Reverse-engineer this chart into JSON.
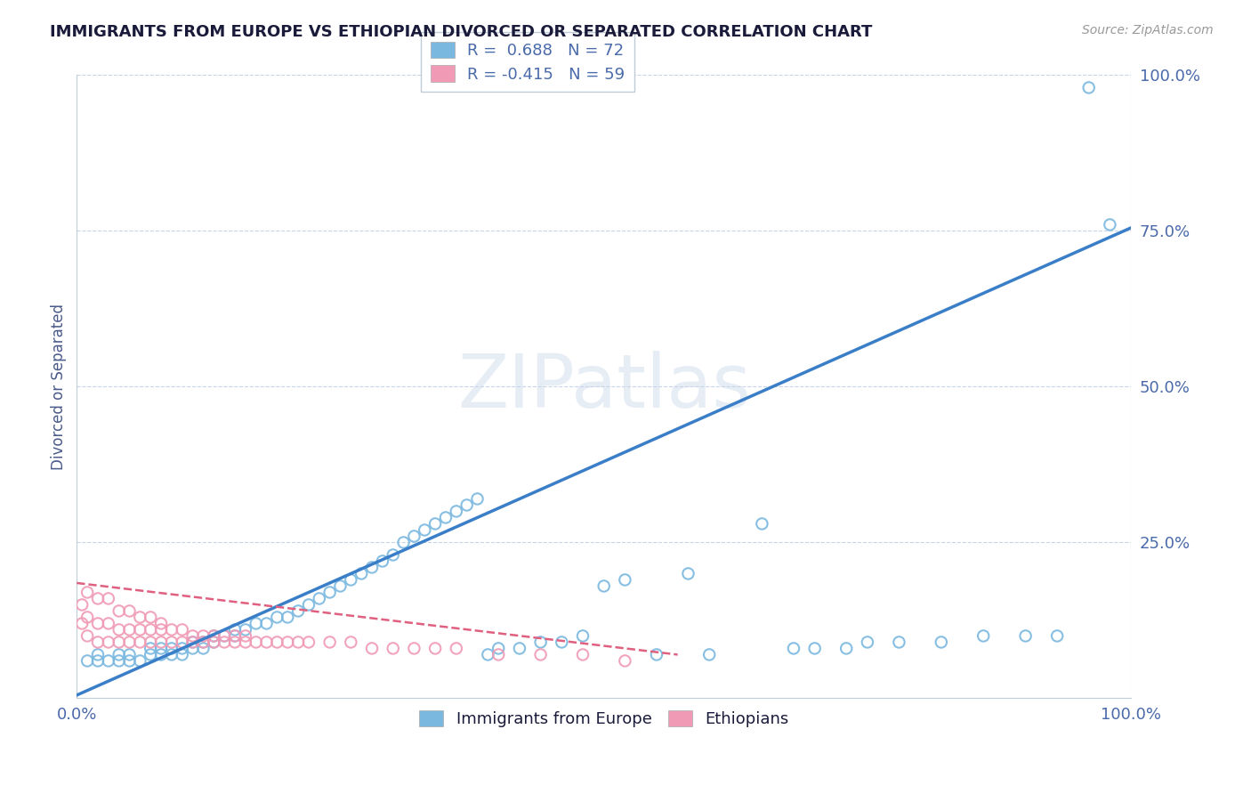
{
  "title": "IMMIGRANTS FROM EUROPE VS ETHIOPIAN DIVORCED OR SEPARATED CORRELATION CHART",
  "source": "Source: ZipAtlas.com",
  "ylabel": "Divorced or Separated",
  "xlim": [
    0,
    1
  ],
  "ylim": [
    0,
    1
  ],
  "ytick_positions": [
    0.25,
    0.5,
    0.75,
    1.0
  ],
  "ytick_labels": [
    "25.0%",
    "50.0%",
    "75.0%",
    "100.0%"
  ],
  "blue_color": "#7ab8e0",
  "pink_color": "#f09ab5",
  "trend_blue_color": "#3a7ec8",
  "trend_pink_color": "#e06080",
  "watermark_text": "ZIPatlas",
  "background_color": "#ffffff",
  "grid_color": "#c8d4e8",
  "title_color": "#1a1a3a",
  "axis_label_color": "#4a5a8a",
  "tick_label_color": "#4a6aaa",
  "legend1_label0": "R =  0.688   N = 72",
  "legend1_label1": "R = -0.415   N = 59",
  "legend2_label0": "Immigrants from Europe",
  "legend2_label1": "Ethiopians",
  "blue_trend": [
    0.0,
    0.005,
    1.0,
    0.755
  ],
  "pink_trend": [
    0.0,
    0.185,
    0.57,
    0.07
  ],
  "blue_scatter_x": [
    0.01,
    0.02,
    0.02,
    0.03,
    0.04,
    0.04,
    0.05,
    0.05,
    0.06,
    0.07,
    0.07,
    0.08,
    0.08,
    0.09,
    0.09,
    0.1,
    0.1,
    0.11,
    0.11,
    0.12,
    0.12,
    0.13,
    0.13,
    0.14,
    0.15,
    0.15,
    0.16,
    0.17,
    0.18,
    0.19,
    0.2,
    0.21,
    0.22,
    0.23,
    0.24,
    0.25,
    0.26,
    0.27,
    0.28,
    0.29,
    0.3,
    0.31,
    0.32,
    0.33,
    0.34,
    0.35,
    0.36,
    0.37,
    0.38,
    0.39,
    0.4,
    0.42,
    0.44,
    0.46,
    0.48,
    0.5,
    0.52,
    0.55,
    0.58,
    0.6,
    0.65,
    0.68,
    0.7,
    0.73,
    0.75,
    0.78,
    0.82,
    0.86,
    0.9,
    0.93,
    0.96,
    0.98
  ],
  "blue_scatter_y": [
    0.06,
    0.06,
    0.07,
    0.06,
    0.06,
    0.07,
    0.06,
    0.07,
    0.06,
    0.07,
    0.08,
    0.07,
    0.08,
    0.07,
    0.08,
    0.07,
    0.08,
    0.08,
    0.09,
    0.08,
    0.09,
    0.09,
    0.1,
    0.1,
    0.1,
    0.11,
    0.11,
    0.12,
    0.12,
    0.13,
    0.13,
    0.14,
    0.15,
    0.16,
    0.17,
    0.18,
    0.19,
    0.2,
    0.21,
    0.22,
    0.23,
    0.25,
    0.26,
    0.27,
    0.28,
    0.29,
    0.3,
    0.31,
    0.32,
    0.07,
    0.08,
    0.08,
    0.09,
    0.09,
    0.1,
    0.18,
    0.19,
    0.07,
    0.2,
    0.07,
    0.28,
    0.08,
    0.08,
    0.08,
    0.09,
    0.09,
    0.09,
    0.1,
    0.1,
    0.1,
    0.98,
    0.76
  ],
  "pink_scatter_x": [
    0.005,
    0.005,
    0.01,
    0.01,
    0.01,
    0.02,
    0.02,
    0.02,
    0.03,
    0.03,
    0.03,
    0.04,
    0.04,
    0.04,
    0.05,
    0.05,
    0.05,
    0.06,
    0.06,
    0.06,
    0.07,
    0.07,
    0.07,
    0.08,
    0.08,
    0.08,
    0.09,
    0.09,
    0.1,
    0.1,
    0.11,
    0.11,
    0.12,
    0.12,
    0.13,
    0.13,
    0.14,
    0.14,
    0.15,
    0.15,
    0.16,
    0.16,
    0.17,
    0.18,
    0.19,
    0.2,
    0.21,
    0.22,
    0.24,
    0.26,
    0.28,
    0.3,
    0.32,
    0.34,
    0.36,
    0.4,
    0.44,
    0.48,
    0.52
  ],
  "pink_scatter_y": [
    0.12,
    0.15,
    0.1,
    0.13,
    0.17,
    0.09,
    0.12,
    0.16,
    0.09,
    0.12,
    0.16,
    0.09,
    0.11,
    0.14,
    0.09,
    0.11,
    0.14,
    0.09,
    0.11,
    0.13,
    0.09,
    0.11,
    0.13,
    0.09,
    0.11,
    0.12,
    0.09,
    0.11,
    0.09,
    0.11,
    0.09,
    0.1,
    0.09,
    0.1,
    0.09,
    0.1,
    0.09,
    0.1,
    0.09,
    0.1,
    0.09,
    0.1,
    0.09,
    0.09,
    0.09,
    0.09,
    0.09,
    0.09,
    0.09,
    0.09,
    0.08,
    0.08,
    0.08,
    0.08,
    0.08,
    0.07,
    0.07,
    0.07,
    0.06
  ]
}
